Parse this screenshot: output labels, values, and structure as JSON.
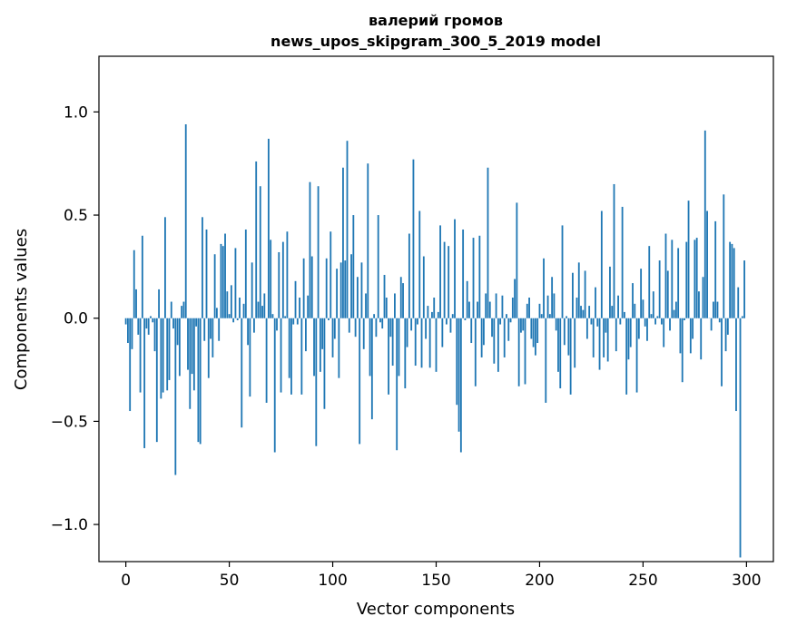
{
  "chart_data": {
    "type": "bar",
    "title": "валерий громов",
    "subtitle": "news_upos_skipgram_300_5_2019 model",
    "xlabel": "Vector components",
    "ylabel": "Components values",
    "xlim": [
      -13,
      313
    ],
    "ylim": [
      -1.18,
      1.27
    ],
    "xticks": [
      0,
      50,
      100,
      150,
      200,
      250,
      300
    ],
    "xtick_labels": [
      "0",
      "50",
      "100",
      "150",
      "200",
      "250",
      "300"
    ],
    "yticks": [
      -1.0,
      -0.5,
      0.0,
      0.5,
      1.0
    ],
    "ytick_labels": [
      "−1.0",
      "−0.5",
      "0.0",
      "0.5",
      "1.0"
    ],
    "grid": false,
    "bar_color": "#1f77b4",
    "x": [
      0,
      1,
      2,
      3,
      4,
      5,
      6,
      7,
      8,
      9,
      10,
      11,
      12,
      13,
      14,
      15,
      16,
      17,
      18,
      19,
      20,
      21,
      22,
      23,
      24,
      25,
      26,
      27,
      28,
      29,
      30,
      31,
      32,
      33,
      34,
      35,
      36,
      37,
      38,
      39,
      40,
      41,
      42,
      43,
      44,
      45,
      46,
      47,
      48,
      49,
      50,
      51,
      52,
      53,
      54,
      55,
      56,
      57,
      58,
      59,
      60,
      61,
      62,
      63,
      64,
      65,
      66,
      67,
      68,
      69,
      70,
      71,
      72,
      73,
      74,
      75,
      76,
      77,
      78,
      79,
      80,
      81,
      82,
      83,
      84,
      85,
      86,
      87,
      88,
      89,
      90,
      91,
      92,
      93,
      94,
      95,
      96,
      97,
      98,
      99,
      100,
      101,
      102,
      103,
      104,
      105,
      106,
      107,
      108,
      109,
      110,
      111,
      112,
      113,
      114,
      115,
      116,
      117,
      118,
      119,
      120,
      121,
      122,
      123,
      124,
      125,
      126,
      127,
      128,
      129,
      130,
      131,
      132,
      133,
      134,
      135,
      136,
      137,
      138,
      139,
      140,
      141,
      142,
      143,
      144,
      145,
      146,
      147,
      148,
      149,
      150,
      151,
      152,
      153,
      154,
      155,
      156,
      157,
      158,
      159,
      160,
      161,
      162,
      163,
      164,
      165,
      166,
      167,
      168,
      169,
      170,
      171,
      172,
      173,
      174,
      175,
      176,
      177,
      178,
      179,
      180,
      181,
      182,
      183,
      184,
      185,
      186,
      187,
      188,
      189,
      190,
      191,
      192,
      193,
      194,
      195,
      196,
      197,
      198,
      199,
      200,
      201,
      202,
      203,
      204,
      205,
      206,
      207,
      208,
      209,
      210,
      211,
      212,
      213,
      214,
      215,
      216,
      217,
      218,
      219,
      220,
      221,
      222,
      223,
      224,
      225,
      226,
      227,
      228,
      229,
      230,
      231,
      232,
      233,
      234,
      235,
      236,
      237,
      238,
      239,
      240,
      241,
      242,
      243,
      244,
      245,
      246,
      247,
      248,
      249,
      250,
      251,
      252,
      253,
      254,
      255,
      256,
      257,
      258,
      259,
      260,
      261,
      262,
      263,
      264,
      265,
      266,
      267,
      268,
      269,
      270,
      271,
      272,
      273,
      274,
      275,
      276,
      277,
      278,
      279,
      280,
      281,
      282,
      283,
      284,
      285,
      286,
      287,
      288,
      289,
      290,
      291,
      292,
      293,
      294,
      295,
      296,
      297,
      298,
      299
    ],
    "values": [
      -0.03,
      -0.12,
      -0.45,
      -0.15,
      0.33,
      0.14,
      -0.08,
      -0.36,
      0.4,
      -0.63,
      -0.05,
      -0.08,
      0.01,
      -0.02,
      -0.16,
      -0.6,
      0.14,
      -0.39,
      -0.36,
      0.49,
      -0.35,
      -0.3,
      0.08,
      -0.05,
      -0.76,
      -0.13,
      -0.28,
      0.06,
      0.08,
      0.94,
      -0.25,
      -0.44,
      -0.27,
      -0.35,
      -0.04,
      -0.6,
      -0.61,
      0.49,
      -0.11,
      0.43,
      -0.29,
      -0.1,
      -0.19,
      0.31,
      0.05,
      -0.11,
      0.36,
      0.35,
      0.41,
      0.13,
      0.02,
      0.16,
      -0.02,
      0.34,
      -0.01,
      0.1,
      -0.53,
      0.07,
      0.43,
      -0.13,
      -0.38,
      0.27,
      -0.07,
      0.76,
      0.08,
      0.64,
      0.06,
      0.12,
      -0.41,
      0.87,
      0.38,
      0.02,
      -0.65,
      -0.06,
      0.32,
      -0.36,
      0.37,
      0.01,
      0.42,
      -0.29,
      -0.37,
      -0.03,
      0.18,
      -0.03,
      0.1,
      -0.37,
      0.29,
      -0.16,
      0.11,
      0.66,
      0.3,
      -0.28,
      -0.62,
      0.64,
      -0.26,
      -0.15,
      -0.44,
      0.29,
      -0.01,
      0.42,
      -0.19,
      -0.1,
      0.24,
      -0.29,
      0.27,
      0.73,
      0.28,
      0.86,
      -0.07,
      0.31,
      0.5,
      -0.09,
      0.2,
      -0.61,
      0.27,
      -0.15,
      0.12,
      0.75,
      -0.28,
      -0.49,
      0.02,
      -0.09,
      0.5,
      -0.02,
      -0.05,
      0.21,
      0.1,
      -0.37,
      -0.09,
      -0.23,
      0.12,
      -0.64,
      -0.28,
      0.2,
      0.17,
      -0.34,
      -0.14,
      0.41,
      -0.06,
      0.77,
      -0.23,
      -0.03,
      0.52,
      -0.24,
      0.3,
      -0.1,
      0.06,
      -0.24,
      0.03,
      0.1,
      -0.26,
      0.03,
      0.45,
      -0.14,
      0.37,
      -0.03,
      0.35,
      -0.07,
      0.02,
      0.48,
      -0.42,
      -0.55,
      -0.65,
      0.43,
      -0.01,
      0.18,
      0.08,
      -0.12,
      0.39,
      -0.33,
      0.08,
      0.4,
      -0.19,
      -0.13,
      0.12,
      0.73,
      0.08,
      -0.09,
      -0.22,
      0.12,
      -0.26,
      -0.03,
      0.11,
      -0.19,
      0.02,
      -0.11,
      -0.02,
      0.1,
      0.19,
      0.56,
      -0.33,
      -0.07,
      -0.06,
      -0.32,
      0.07,
      0.1,
      -0.1,
      -0.14,
      -0.18,
      -0.12,
      0.07,
      0.02,
      0.29,
      -0.41,
      0.11,
      0.02,
      0.2,
      0.12,
      -0.06,
      -0.26,
      -0.34,
      0.45,
      -0.13,
      0.01,
      -0.18,
      -0.37,
      0.22,
      -0.24,
      0.1,
      0.27,
      0.06,
      0.04,
      0.23,
      -0.1,
      0.06,
      -0.03,
      -0.19,
      0.15,
      -0.04,
      -0.25,
      0.52,
      -0.19,
      -0.07,
      -0.21,
      0.25,
      0.06,
      0.65,
      -0.16,
      0.11,
      -0.03,
      0.54,
      0.03,
      -0.37,
      -0.2,
      -0.14,
      0.17,
      0.07,
      -0.36,
      -0.1,
      0.24,
      0.09,
      -0.04,
      -0.11,
      0.35,
      0.02,
      0.13,
      -0.03,
      0.01,
      0.28,
      -0.03,
      -0.14,
      0.41,
      0.23,
      -0.06,
      0.38,
      0.04,
      0.08,
      0.34,
      -0.17,
      -0.31,
      -0.01,
      0.37,
      0.57,
      -0.17,
      -0.1,
      0.38,
      0.39,
      0.13,
      -0.2,
      0.2,
      0.91,
      0.52,
      0.0,
      -0.06,
      0.08,
      0.47,
      0.08,
      -0.02,
      -0.33,
      0.6,
      -0.16,
      -0.08,
      0.37,
      0.36,
      0.34,
      -0.45,
      0.15,
      -1.16,
      0.01,
      0.28
    ]
  }
}
